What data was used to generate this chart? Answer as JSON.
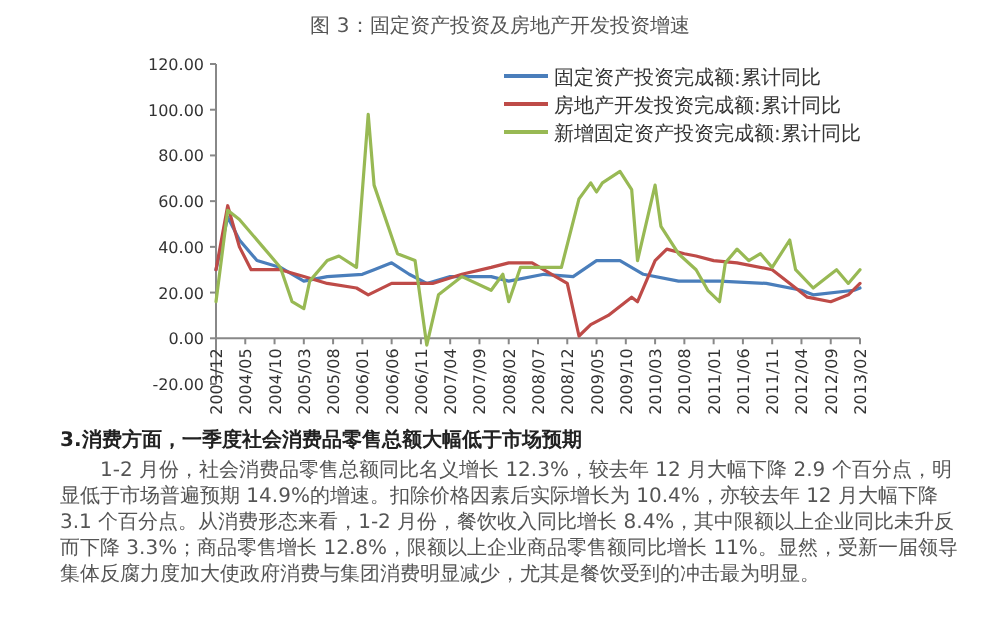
{
  "chart_data": {
    "type": "line",
    "title": "图 3：固定资产投资及房地产开发投资增速",
    "xlim": [
      "2003-12",
      "2013-02"
    ],
    "xticks": [
      {
        "value": "2003-12",
        "label": "2003/12"
      },
      {
        "value": "2004-05",
        "label": "2004/05"
      },
      {
        "value": "2004-10",
        "label": "2004/10"
      },
      {
        "value": "2005-03",
        "label": "2005/03"
      },
      {
        "value": "2005-08",
        "label": "2005/08"
      },
      {
        "value": "2006-01",
        "label": "2006/01"
      },
      {
        "value": "2006-06",
        "label": "2006/06"
      },
      {
        "value": "2006-11",
        "label": "2006/11"
      },
      {
        "value": "2007-04",
        "label": "2007/04"
      },
      {
        "value": "2007-09",
        "label": "2007/09"
      },
      {
        "value": "2008-02",
        "label": "2008/02"
      },
      {
        "value": "2008-07",
        "label": "2008/07"
      },
      {
        "value": "2008-12",
        "label": "2008/12"
      },
      {
        "value": "2009-05",
        "label": "2009/05"
      },
      {
        "value": "2009-10",
        "label": "2009/10"
      },
      {
        "value": "2010-03",
        "label": "2010/03"
      },
      {
        "value": "2010-08",
        "label": "2010/08"
      },
      {
        "value": "2011-01",
        "label": "2011/01"
      },
      {
        "value": "2011-06",
        "label": "2011/06"
      },
      {
        "value": "2011-11",
        "label": "2011/11"
      },
      {
        "value": "2012-04",
        "label": "2012/04"
      },
      {
        "value": "2012-09",
        "label": "2012/09"
      },
      {
        "value": "2013-02",
        "label": "2013/02"
      }
    ],
    "ylim": [
      -20,
      120
    ],
    "yticks": [
      {
        "value": -20,
        "label": "-20.00"
      },
      {
        "value": 0,
        "label": "0.00"
      },
      {
        "value": 20,
        "label": "20.00"
      },
      {
        "value": 40,
        "label": "40.00"
      },
      {
        "value": 60,
        "label": "60.00"
      },
      {
        "value": 80,
        "label": "80.00"
      },
      {
        "value": 100,
        "label": "100.00"
      },
      {
        "value": 120,
        "label": "120.00"
      }
    ],
    "legend": "top right",
    "series": [
      {
        "name": "固定资产投资完成额:累计同比",
        "color": "#4a7ebb",
        "x": [
          "2003-12",
          "2004-02",
          "2004-04",
          "2004-07",
          "2004-11",
          "2005-03",
          "2005-07",
          "2006-01",
          "2006-03",
          "2006-06",
          "2006-09",
          "2006-12",
          "2007-04",
          "2007-11",
          "2008-02",
          "2008-08",
          "2009-01",
          "2009-05",
          "2009-09",
          "2010-01",
          "2010-07",
          "2011-02",
          "2011-10",
          "2012-04",
          "2012-06",
          "2013-01",
          "2013-02"
        ],
        "values": [
          30,
          53,
          43,
          34,
          31,
          25,
          27,
          28,
          30,
          33,
          28,
          24,
          27,
          27,
          25,
          28,
          27,
          34,
          34,
          28,
          25,
          25,
          24,
          21,
          19,
          21,
          22
        ]
      },
      {
        "name": "房地产开发投资完成额:累计同比",
        "color": "#be4b48",
        "x": [
          "2003-12",
          "2004-02",
          "2004-04",
          "2004-06",
          "2004-11",
          "2005-03",
          "2005-07",
          "2005-12",
          "2006-02",
          "2006-06",
          "2007-01",
          "2007-06",
          "2007-11",
          "2008-02",
          "2008-06",
          "2008-10",
          "2008-12",
          "2009-02",
          "2009-04",
          "2009-07",
          "2009-11",
          "2009-12",
          "2010-03",
          "2010-05",
          "2010-08",
          "2010-10",
          "2011-01",
          "2011-05",
          "2011-11",
          "2012-03",
          "2012-05",
          "2012-09",
          "2012-12",
          "2013-02"
        ],
        "values": [
          30,
          58,
          40,
          30,
          30,
          27,
          24,
          22,
          19,
          24,
          24,
          28,
          31,
          33,
          33,
          27,
          24,
          1,
          6,
          10,
          18,
          16,
          34,
          39,
          37,
          36,
          34,
          33,
          30,
          22,
          18,
          16,
          19,
          24
        ]
      },
      {
        "name": "新增固定资产投资完成额:累计同比",
        "color": "#98b954",
        "x": [
          "2003-12",
          "2004-02",
          "2004-04",
          "2004-08",
          "2004-11",
          "2005-01",
          "2005-03",
          "2005-04",
          "2005-07",
          "2005-09",
          "2005-12",
          "2006-02",
          "2006-03",
          "2006-07",
          "2006-10",
          "2006-12",
          "2007-02",
          "2007-06",
          "2007-11",
          "2008-01",
          "2008-02",
          "2008-04",
          "2008-11",
          "2009-02",
          "2009-04",
          "2009-05",
          "2009-06",
          "2009-09",
          "2009-11",
          "2009-12",
          "2010-03",
          "2010-04",
          "2010-07",
          "2010-10",
          "2010-12",
          "2011-02",
          "2011-03",
          "2011-05",
          "2011-07",
          "2011-09",
          "2011-11",
          "2012-02",
          "2012-03",
          "2012-06",
          "2012-09",
          "2012-10",
          "2012-12",
          "2013-02"
        ],
        "values": [
          16,
          56,
          52,
          40,
          31,
          16,
          13,
          25,
          34,
          36,
          31,
          98,
          67,
          37,
          34,
          -3,
          19,
          27,
          21,
          28,
          16,
          31,
          31,
          61,
          68,
          64,
          68,
          73,
          65,
          34,
          67,
          49,
          37,
          30,
          21,
          16,
          33,
          39,
          34,
          37,
          31,
          43,
          30,
          22,
          28,
          30,
          24,
          30
        ]
      }
    ],
    "annotations": [
      "3.消费方面，一季度社会消费品零售总额大幅低于市场预期",
      "1-2 月份，社会消费品零售总额同比名义增长 12.3%，较去年 12 月大幅下降 2.9 个百分点，明显低于市场普遍预期 14.9%的增速。扣除价格因素后实际增长为 10.4%，亦较去年 12 月大幅下降 3.1 个百分点。从消费形态来看，1-2 月份，餐饮收入同比增长 8.4%，其中限额以上企业同比未升反而下降 3.3%；商品零售增长 12.8%，限额以上企业商品零售额同比增长 11%。显然，受新一届领导集体反腐力度加大使政府消费与集团消费明显减少，尤其是餐饮受到的冲击最为明显。"
    ]
  }
}
